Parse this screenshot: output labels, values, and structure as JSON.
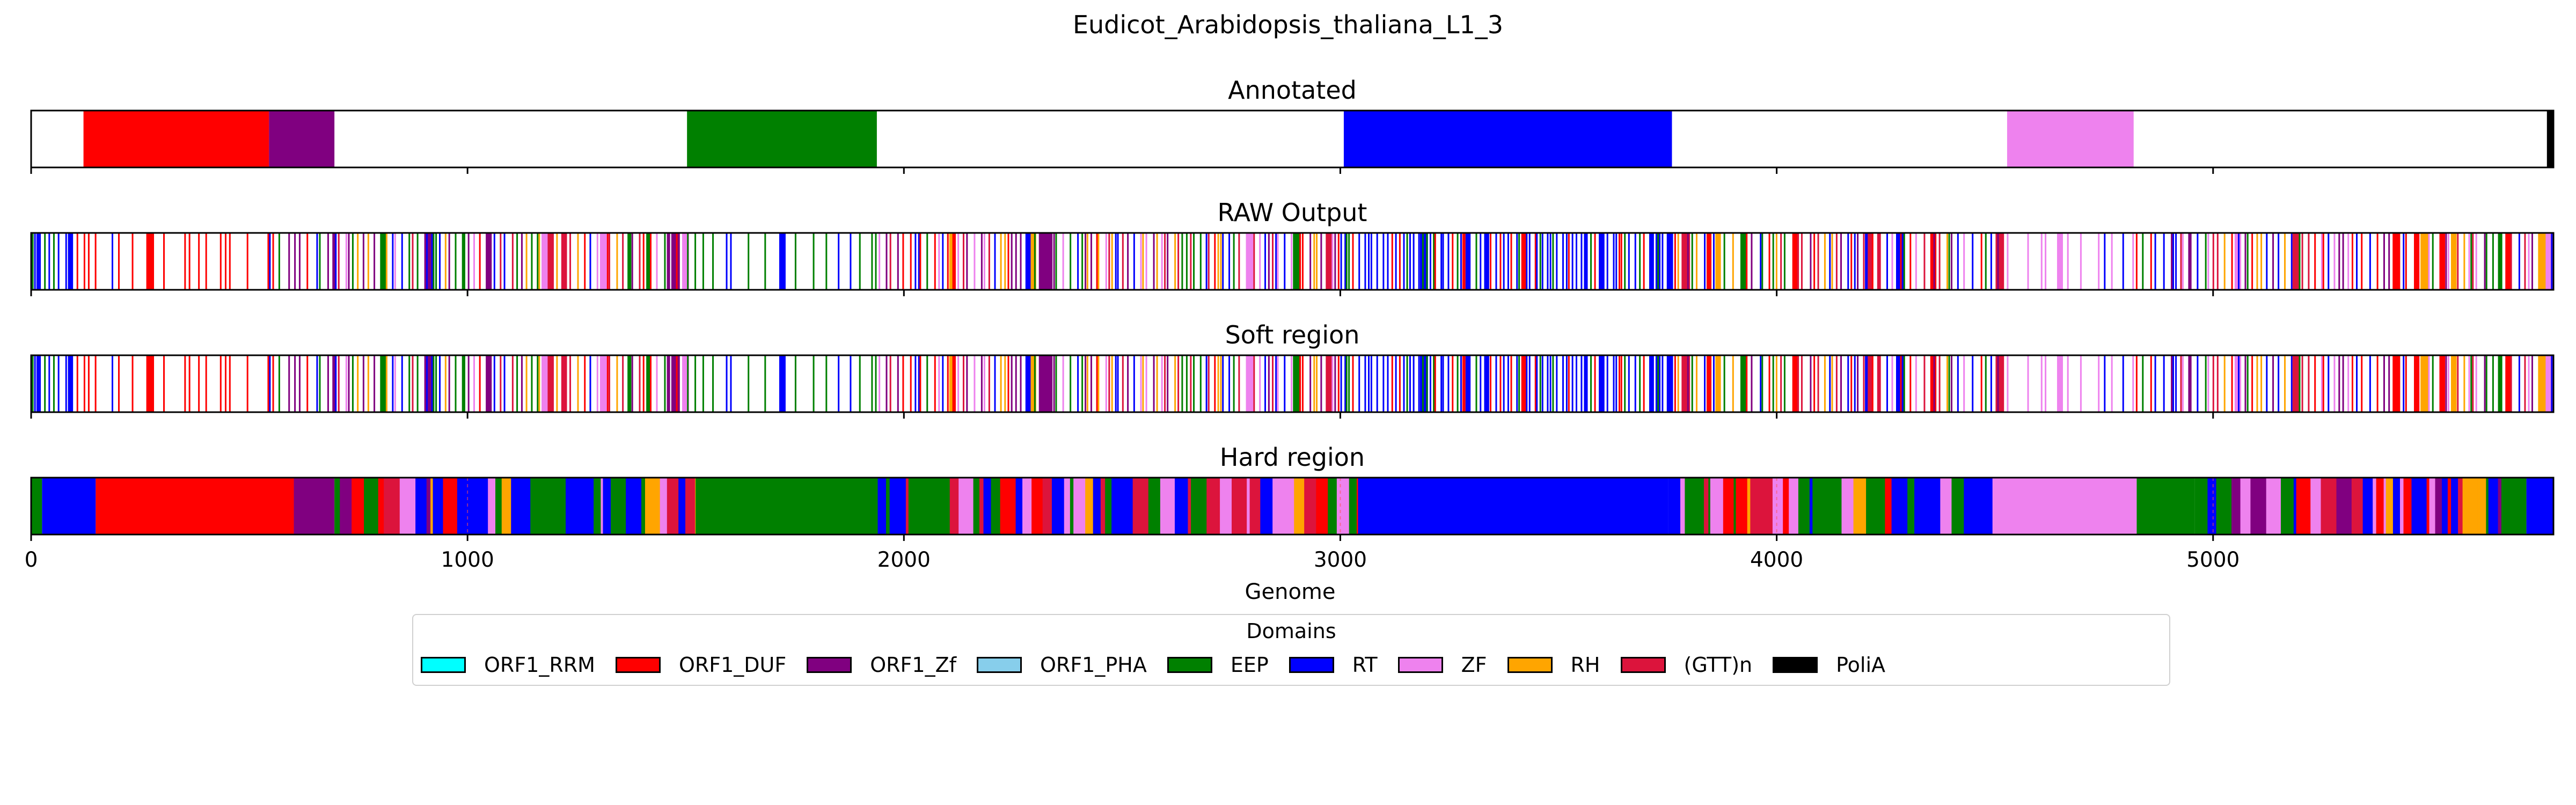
{
  "figure": {
    "title": "Eudicot_Arabidopsis_thaliana_L1_3"
  },
  "colors": {
    "ORF1_RRM": "#00ffff",
    "ORF1_DUF": "#ff0000",
    "ORF1_Zf": "#800080",
    "ORF1_PHA": "#87ceeb",
    "EEP": "#008000",
    "RT": "#0000ff",
    "ZF": "#ee82ee",
    "RH": "#ffa500",
    "(GTT)n": "#dc143c",
    "PoliA": "#000000"
  },
  "chart_data": {
    "type": "genome-track",
    "xlabel": "Genome",
    "xlim": [
      0,
      5780
    ],
    "x_ticks": [
      0,
      1000,
      2000,
      3000,
      4000,
      5000
    ],
    "legend": {
      "title": "Domains",
      "placement": "bottom-center",
      "entries": [
        "ORF1_RRM",
        "ORF1_DUF",
        "ORF1_Zf",
        "ORF1_PHA",
        "EEP",
        "RT",
        "ZF",
        "RH",
        "(GTT)n",
        "PoliA"
      ]
    },
    "tracks": [
      {
        "title": "Annotated",
        "style": "segments",
        "segments": [
          {
            "start": 120,
            "end": 545,
            "domain": "ORF1_DUF"
          },
          {
            "start": 545,
            "end": 695,
            "domain": "ORF1_Zf"
          },
          {
            "start": 1503,
            "end": 1938,
            "domain": "EEP"
          },
          {
            "start": 3008,
            "end": 3760,
            "domain": "RT"
          },
          {
            "start": 4528,
            "end": 4818,
            "domain": "ZF"
          },
          {
            "start": 5765,
            "end": 5780,
            "domain": "PoliA"
          }
        ]
      },
      {
        "title": "RAW Output",
        "style": "lines",
        "seed": 11,
        "zones": [
          {
            "start": 0,
            "end": 120,
            "domains": [
              "RT",
              "EEP",
              "RT",
              "ORF1_DUF"
            ],
            "density": 0.08
          },
          {
            "start": 120,
            "end": 545,
            "domains": [
              "ORF1_DUF",
              "ORF1_DUF",
              "ORF1_DUF",
              "RT"
            ],
            "density": 0.035
          },
          {
            "start": 545,
            "end": 700,
            "domains": [
              "ORF1_Zf",
              "ORF1_DUF",
              "RT",
              "EEP"
            ],
            "density": 0.07
          },
          {
            "start": 700,
            "end": 1500,
            "domains": [
              "RT",
              "EEP",
              "ORF1_DUF",
              "RH",
              "ORF1_Zf",
              "ZF",
              "(GTT)n"
            ],
            "density": 0.09
          },
          {
            "start": 1500,
            "end": 1940,
            "domains": [
              "EEP",
              "EEP",
              "EEP",
              "RT"
            ],
            "density": 0.04
          },
          {
            "start": 1940,
            "end": 3000,
            "domains": [
              "RT",
              "EEP",
              "ORF1_DUF",
              "RH",
              "ZF",
              "(GTT)n",
              "ORF1_Zf"
            ],
            "density": 0.095
          },
          {
            "start": 3000,
            "end": 3760,
            "domains": [
              "RT",
              "RT",
              "RT",
              "EEP",
              "ORF1_DUF"
            ],
            "density": 0.11
          },
          {
            "start": 3760,
            "end": 4520,
            "domains": [
              "RT",
              "EEP",
              "ORF1_DUF",
              "RH",
              "ZF",
              "(GTT)n",
              "ORF1_Zf"
            ],
            "density": 0.08
          },
          {
            "start": 4520,
            "end": 4820,
            "domains": [
              "ZF",
              "ZF",
              "ZF",
              "RT"
            ],
            "density": 0.035
          },
          {
            "start": 4820,
            "end": 5780,
            "domains": [
              "RT",
              "EEP",
              "ORF1_DUF",
              "RH",
              "ZF",
              "(GTT)n",
              "ORF1_Zf"
            ],
            "density": 0.085
          }
        ]
      },
      {
        "title": "Soft region",
        "style": "lines",
        "seed": 11,
        "zones": [
          {
            "start": 0,
            "end": 120,
            "domains": [
              "RT",
              "EEP",
              "RT",
              "ORF1_DUF"
            ],
            "density": 0.08
          },
          {
            "start": 120,
            "end": 545,
            "domains": [
              "ORF1_DUF",
              "ORF1_DUF",
              "ORF1_DUF",
              "RT"
            ],
            "density": 0.035
          },
          {
            "start": 545,
            "end": 700,
            "domains": [
              "ORF1_Zf",
              "ORF1_DUF",
              "RT",
              "EEP"
            ],
            "density": 0.07
          },
          {
            "start": 700,
            "end": 1500,
            "domains": [
              "RT",
              "EEP",
              "ORF1_DUF",
              "RH",
              "ORF1_Zf",
              "ZF",
              "(GTT)n"
            ],
            "density": 0.09
          },
          {
            "start": 1500,
            "end": 1940,
            "domains": [
              "EEP",
              "EEP",
              "EEP",
              "RT"
            ],
            "density": 0.04
          },
          {
            "start": 1940,
            "end": 3000,
            "domains": [
              "RT",
              "EEP",
              "ORF1_DUF",
              "RH",
              "ZF",
              "(GTT)n",
              "ORF1_Zf"
            ],
            "density": 0.095
          },
          {
            "start": 3000,
            "end": 3760,
            "domains": [
              "RT",
              "RT",
              "RT",
              "EEP",
              "ORF1_DUF"
            ],
            "density": 0.11
          },
          {
            "start": 3760,
            "end": 4520,
            "domains": [
              "RT",
              "EEP",
              "ORF1_DUF",
              "RH",
              "ZF",
              "(GTT)n",
              "ORF1_Zf"
            ],
            "density": 0.08
          },
          {
            "start": 4520,
            "end": 4820,
            "domains": [
              "ZF",
              "ZF",
              "ZF",
              "RT"
            ],
            "density": 0.035
          },
          {
            "start": 4820,
            "end": 5780,
            "domains": [
              "RT",
              "EEP",
              "ORF1_DUF",
              "RH",
              "ZF",
              "(GTT)n",
              "ORF1_Zf"
            ],
            "density": 0.085
          }
        ]
      },
      {
        "title": "Hard region",
        "style": "filled",
        "seed": 29,
        "base": [
          {
            "start": 0,
            "end": 25,
            "domain": "EEP"
          },
          {
            "start": 25,
            "end": 148,
            "domain": "RT"
          },
          {
            "start": 148,
            "end": 602,
            "domain": "ORF1_DUF"
          },
          {
            "start": 602,
            "end": 695,
            "domain": "ORF1_Zf"
          },
          {
            "start": 1522,
            "end": 1940,
            "domain": "EEP"
          },
          {
            "start": 3040,
            "end": 3752,
            "domain": "RT"
          },
          {
            "start": 4502,
            "end": 4825,
            "domain": "ZF"
          },
          {
            "start": 4825,
            "end": 4958,
            "domain": "EEP"
          },
          {
            "start": 5660,
            "end": 5718,
            "domain": "EEP"
          },
          {
            "start": 5718,
            "end": 5780,
            "domain": "RT"
          }
        ],
        "mixed_zones": [
          {
            "start": 695,
            "end": 1522,
            "domains": [
              "RT",
              "EEP",
              "ORF1_DUF",
              "RH",
              "ZF",
              "(GTT)n",
              "ORF1_Zf",
              "RT",
              "EEP"
            ]
          },
          {
            "start": 1940,
            "end": 3040,
            "domains": [
              "RT",
              "EEP",
              "ORF1_DUF",
              "RH",
              "ZF",
              "(GTT)n",
              "RT",
              "EEP"
            ]
          },
          {
            "start": 3752,
            "end": 4502,
            "domains": [
              "RT",
              "EEP",
              "ORF1_DUF",
              "RH",
              "ZF",
              "(GTT)n",
              "RT",
              "EEP"
            ]
          },
          {
            "start": 4958,
            "end": 5660,
            "domains": [
              "RT",
              "EEP",
              "ORF1_DUF",
              "RH",
              "ZF",
              "(GTT)n",
              "ORF1_Zf",
              "RT",
              "EEP"
            ]
          }
        ]
      }
    ]
  }
}
